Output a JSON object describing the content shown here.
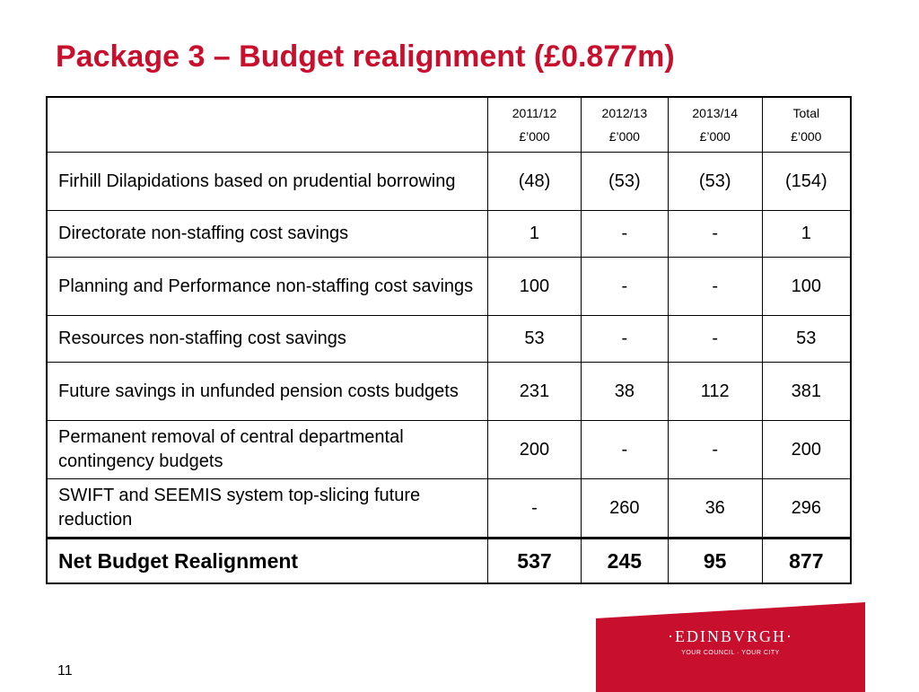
{
  "slide": {
    "title": "Package 3 – Budget realignment (£0.877m)",
    "page_number": "11"
  },
  "table": {
    "headers": [
      {
        "year": "",
        "unit": ""
      },
      {
        "year": "2011/12",
        "unit": "£’000"
      },
      {
        "year": "2012/13",
        "unit": "£’000"
      },
      {
        "year": "2013/14",
        "unit": "£’000"
      },
      {
        "year": "Total",
        "unit": "£’000"
      }
    ],
    "rows": [
      {
        "label": "Firhill Dilapidations based on prudential borrowing",
        "v1": "(48)",
        "v2": "(53)",
        "v3": "(53)",
        "total": "(154)"
      },
      {
        "label": "Directorate non-staffing cost savings",
        "v1": "1",
        "v2": "-",
        "v3": "-",
        "total": "1"
      },
      {
        "label": "Planning and Performance non-staffing cost savings",
        "v1": "100",
        "v2": "-",
        "v3": "-",
        "total": "100"
      },
      {
        "label": "Resources non-staffing cost savings",
        "v1": "53",
        "v2": "-",
        "v3": "-",
        "total": "53"
      },
      {
        "label": "Future savings in unfunded pension costs budgets",
        "v1": "231",
        "v2": "38",
        "v3": "112",
        "total": "381"
      },
      {
        "label": "Permanent removal of central departmental contingency budgets",
        "v1": "200",
        "v2": "-",
        "v3": "-",
        "total": "200"
      },
      {
        "label": "SWIFT and SEEMIS system top-slicing future reduction",
        "v1": "-",
        "v2": "260",
        "v3": "36",
        "total": "296"
      }
    ],
    "total_row": {
      "label": "Net Budget Realignment",
      "v1": "537",
      "v2": "245",
      "v3": "95",
      "total": "877"
    }
  },
  "logo": {
    "name": "·EDINBVRGH·",
    "tagline": "YOUR COUNCIL · YOUR CITY",
    "color": "#c8102e"
  },
  "colors": {
    "title": "#c8102e",
    "text": "#000000"
  }
}
